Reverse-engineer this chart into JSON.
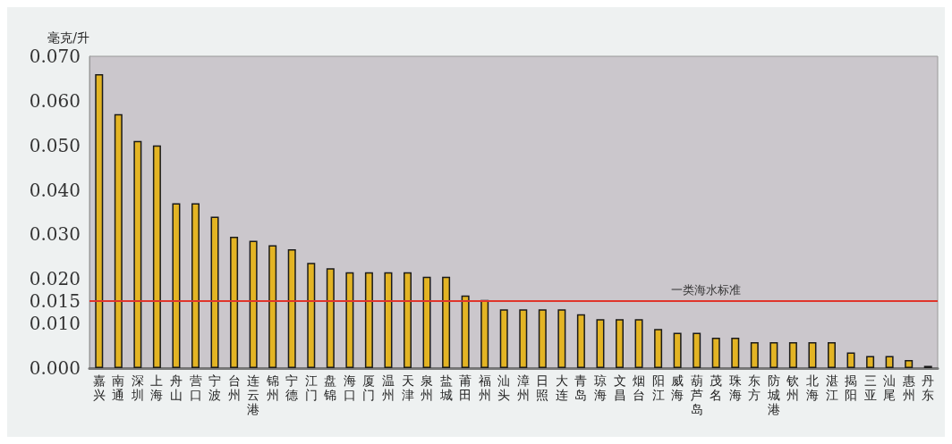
{
  "chart_data": {
    "type": "bar",
    "ylabel": "毫克/升",
    "categories": [
      "嘉兴",
      "南通",
      "深圳",
      "上海",
      "舟山",
      "营口",
      "宁波",
      "台州",
      "连云港",
      "锦州",
      "宁德",
      "江门",
      "盘锦",
      "海口",
      "厦门",
      "温州",
      "天津",
      "泉州",
      "盐城",
      "莆田",
      "福州",
      "汕头",
      "漳州",
      "日照",
      "大连",
      "青岛",
      "琼海",
      "文昌",
      "烟台",
      "阳江",
      "威海",
      "葫芦岛",
      "茂名",
      "珠海",
      "东方",
      "防城港",
      "钦州",
      "北海",
      "湛江",
      "揭阳",
      "三亚",
      "汕尾",
      "惠州",
      "丹东"
    ],
    "values": [
      0.066,
      0.057,
      0.051,
      0.05,
      0.037,
      0.037,
      0.034,
      0.0295,
      0.0286,
      0.0276,
      0.0267,
      0.0236,
      0.0224,
      0.0215,
      0.0215,
      0.0215,
      0.0215,
      0.0205,
      0.0205,
      0.0163,
      0.0153,
      0.0132,
      0.0132,
      0.0132,
      0.0132,
      0.0121,
      0.011,
      0.011,
      0.011,
      0.0088,
      0.0079,
      0.0079,
      0.0068,
      0.0068,
      0.0058,
      0.0058,
      0.0058,
      0.0058,
      0.0058,
      0.0035,
      0.0027,
      0.0027,
      0.0018,
      0.0005
    ],
    "color": "#e3b424",
    "ylim": [
      0,
      0.07
    ],
    "yticks": [
      {
        "value": 0,
        "label": "0.000"
      },
      {
        "value": 0.01,
        "label": "0.010"
      },
      {
        "value": 0.015,
        "label": "0.015"
      },
      {
        "value": 0.02,
        "label": "0.020"
      },
      {
        "value": 0.03,
        "label": "0.030"
      },
      {
        "value": 0.04,
        "label": "0.040"
      },
      {
        "value": 0.05,
        "label": "0.050"
      },
      {
        "value": 0.06,
        "label": "0.060"
      },
      {
        "value": 0.07,
        "label": "0.070"
      }
    ],
    "ref_lines": [
      {
        "axis": "y",
        "value": 0.015,
        "label": "一类海水标准",
        "color": "#e0352b"
      }
    ],
    "grid": false
  }
}
